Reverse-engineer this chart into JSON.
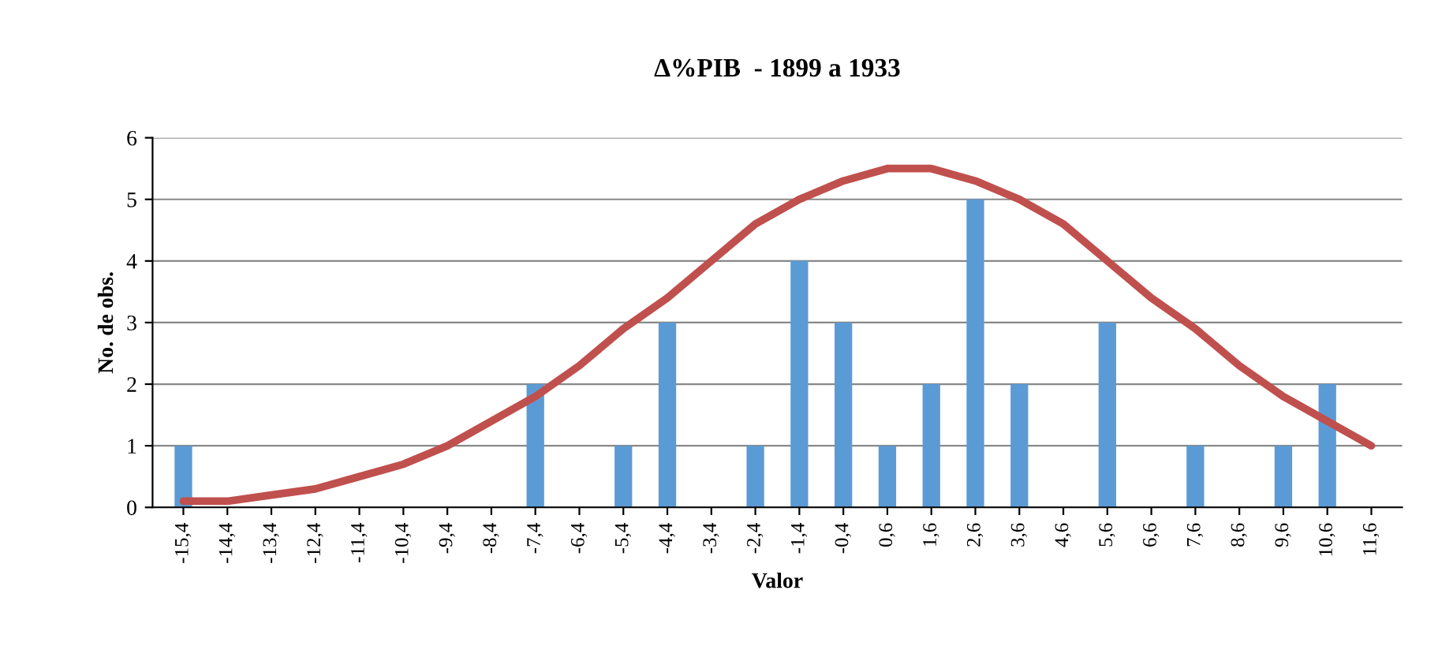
{
  "chart_data": {
    "type": "bar",
    "title": "Δ%PIB  - 1899 a 1933",
    "xlabel": "Valor",
    "ylabel": "No. de obs.",
    "categories": [
      "-15,4",
      "-14,4",
      "-13,4",
      "-12,4",
      "-11,4",
      "-10,4",
      "-9,4",
      "-8,4",
      "-7,4",
      "-6,4",
      "-5,4",
      "-4,4",
      "-3,4",
      "-2,4",
      "-1,4",
      "-0,4",
      "0,6",
      "1,6",
      "2,6",
      "3,6",
      "4,6",
      "5,6",
      "6,6",
      "7,6",
      "8,6",
      "9,6",
      "10,6",
      "11,6"
    ],
    "series": [
      {
        "color": "#5b9bd5",
        "values": [
          1,
          0,
          0,
          0,
          0,
          0,
          0,
          0,
          2,
          0,
          1,
          3,
          0,
          1,
          4,
          3,
          1,
          2,
          5,
          2,
          0,
          3,
          0,
          1,
          0,
          1,
          2,
          0
        ]
      },
      {
        "type": "line",
        "color": "#c0504d",
        "values": [
          0.1,
          0.1,
          0.2,
          0.3,
          0.5,
          0.7,
          1.0,
          1.4,
          1.8,
          2.3,
          2.9,
          3.4,
          4.0,
          4.6,
          5.0,
          5.3,
          5.5,
          5.5,
          5.3,
          5.0,
          4.6,
          4.0,
          3.4,
          2.9,
          2.3,
          1.8,
          1.4,
          1.0
        ]
      }
    ],
    "ylim": [
      0,
      6
    ],
    "yticks": [
      0,
      1,
      2,
      3,
      4,
      5,
      6
    ],
    "grid": "y",
    "legend": false,
    "marker": "none",
    "line_style": "solid"
  }
}
